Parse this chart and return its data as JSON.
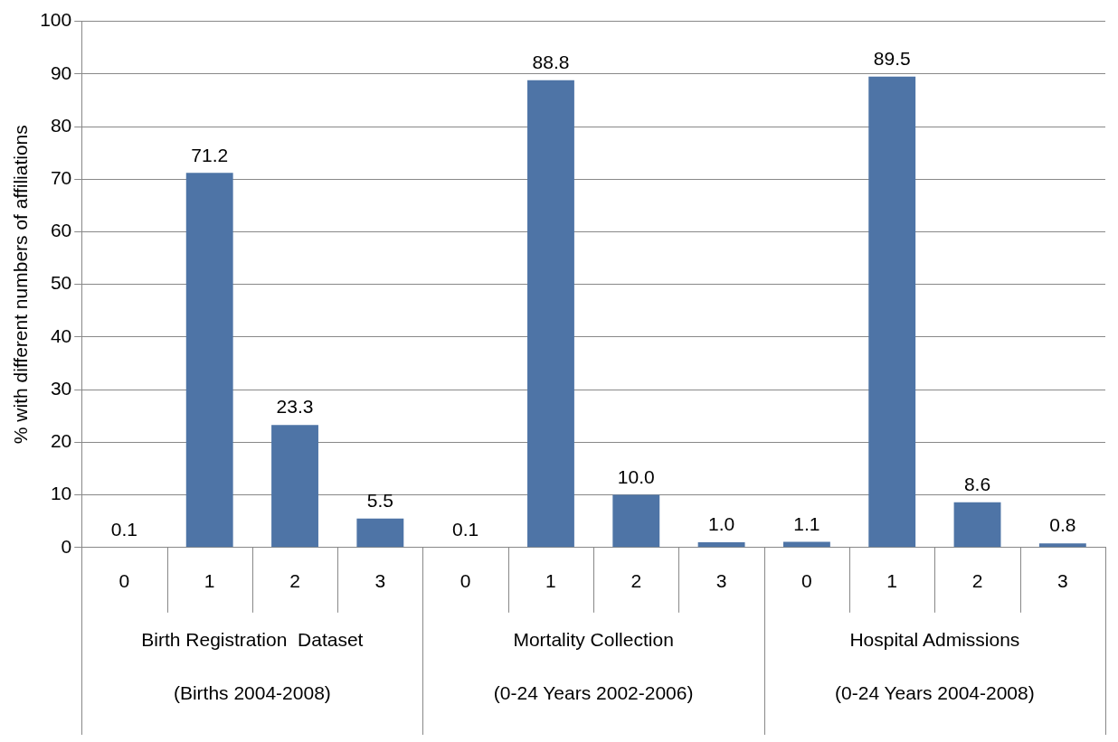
{
  "chart_data": {
    "type": "bar",
    "ylabel": "% with different numbers of affiliations",
    "categories": [
      "0",
      "1",
      "2",
      "3",
      "0",
      "1",
      "2",
      "3",
      "0",
      "1",
      "2",
      "3"
    ],
    "values": [
      0.1,
      71.2,
      23.3,
      5.5,
      0.1,
      88.8,
      10.0,
      1.0,
      1.1,
      89.5,
      8.6,
      0.8
    ],
    "value_labels": [
      "0.1",
      "71.2",
      "23.3",
      "5.5",
      "0.1",
      "88.8",
      "10.0",
      "1.0",
      "1.1",
      "89.5",
      "8.6",
      "0.8"
    ],
    "color": "#4e74a6",
    "annotations": [
      "Birth Registration  Dataset",
      "(Births 2004-2008)",
      "Mortality Collection",
      "(0-24 Years 2002-2006)",
      "Hospital Admissions",
      "(0-24 Years 2004-2008)"
    ],
    "ylim": [
      0,
      100
    ],
    "yticks": [
      0,
      10,
      20,
      30,
      40,
      50,
      60,
      70,
      80,
      90,
      100
    ],
    "grid": "y",
    "legend": false
  }
}
